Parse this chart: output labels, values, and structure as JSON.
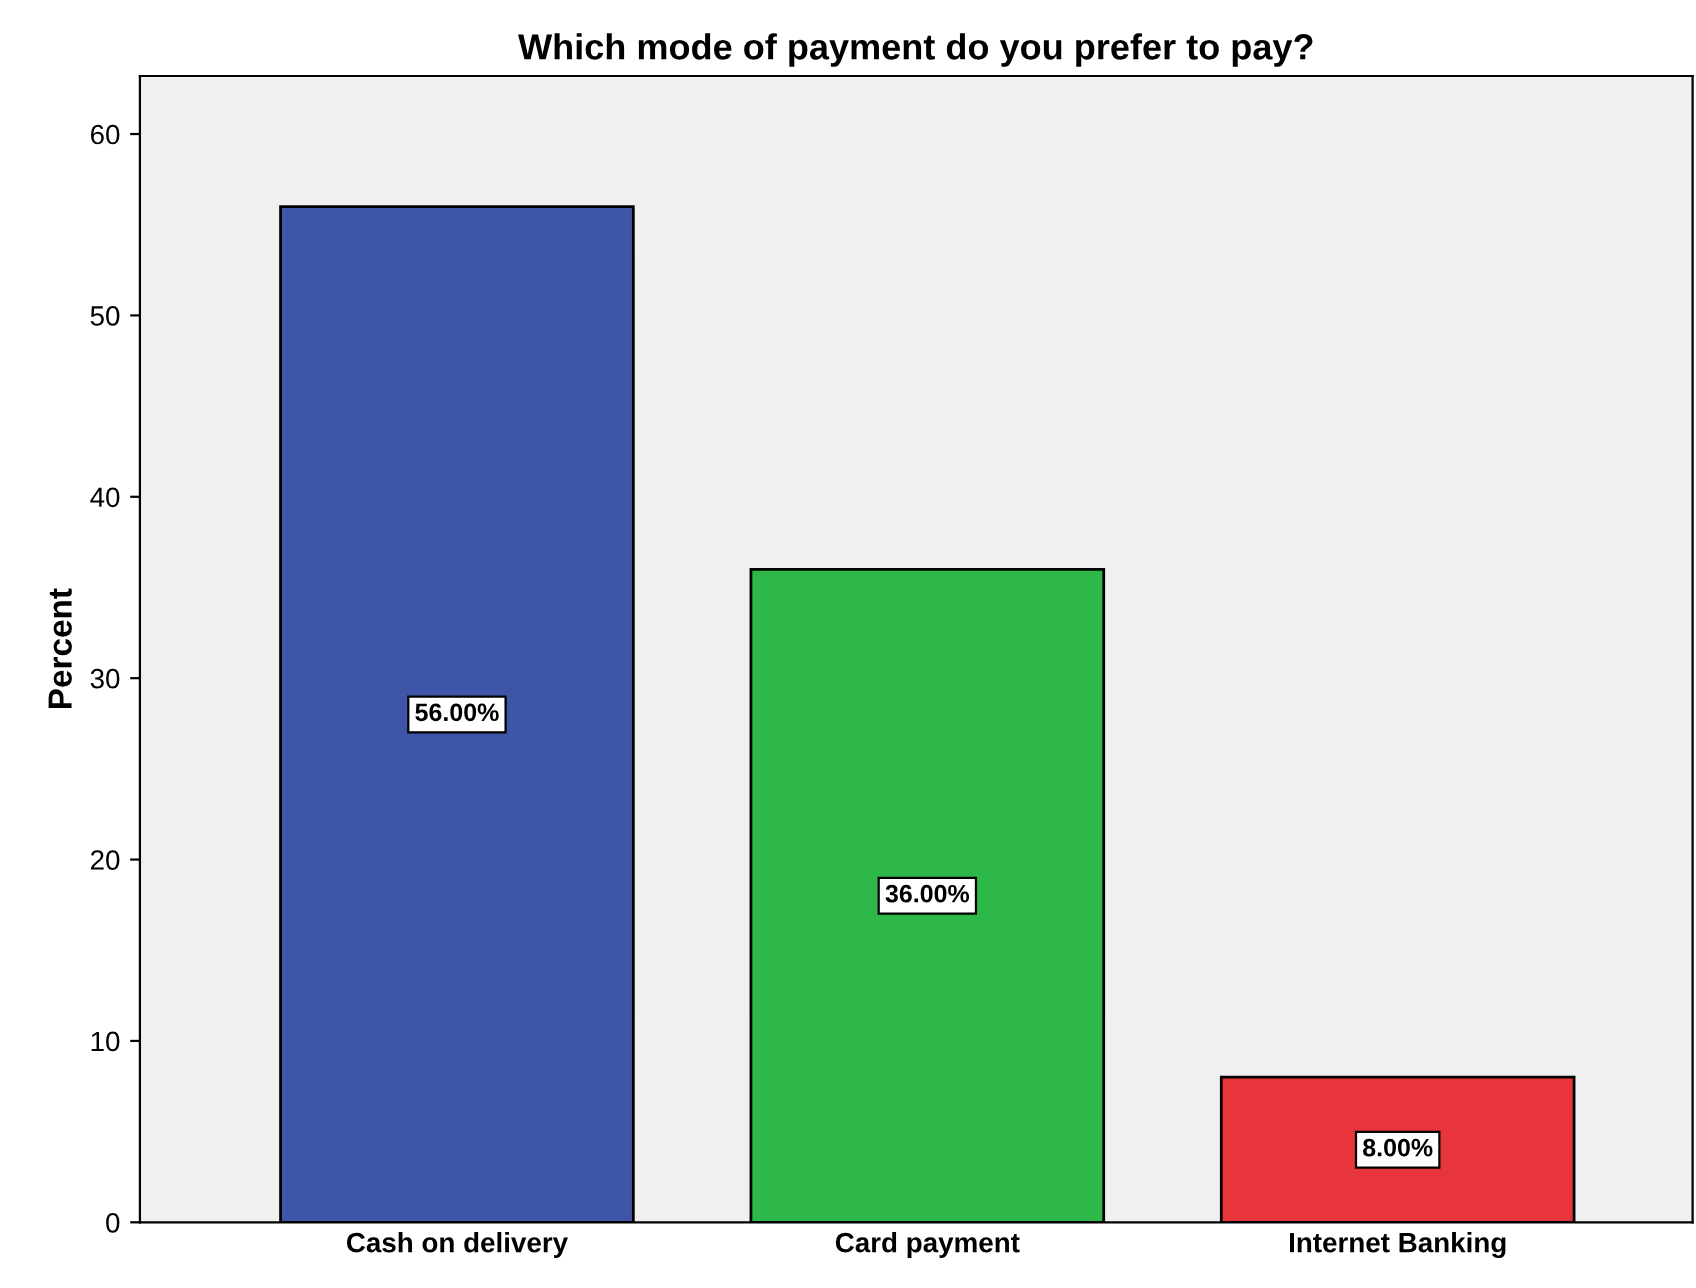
{
  "chart_data": {
    "type": "bar",
    "title": "Which mode of payment do you prefer to pay?",
    "ylabel": "Percent",
    "categories": [
      "Cash on delivery",
      "Card payment",
      "Internet Banking"
    ],
    "values": [
      56,
      36,
      8
    ],
    "colors": [
      "#3f56a8",
      "#2eb84a",
      "#e8353b"
    ],
    "value_labels": [
      "56.00%",
      "36.00%",
      "8.00%"
    ],
    "ylim": [
      0,
      63.2
    ],
    "yticks": [
      0,
      10,
      20,
      30,
      40,
      50,
      60
    ],
    "grid": false,
    "legend": false
  }
}
